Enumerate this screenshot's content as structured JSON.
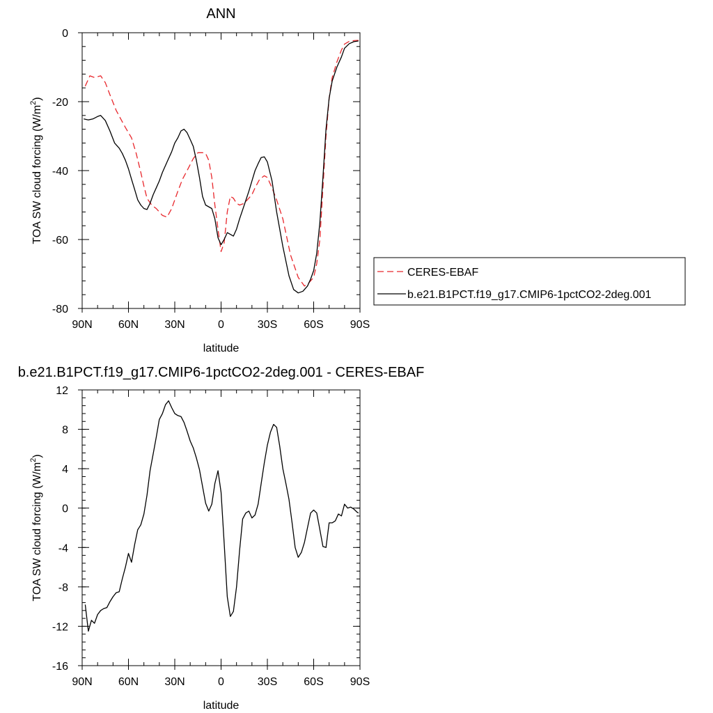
{
  "chart_data": [
    {
      "type": "line",
      "title": "ANN",
      "xlabel": "latitude",
      "ylabel_main": "TOA SW cloud forcing (W/m",
      "ylabel_sup": "2",
      "ylabel_end": ")",
      "xlim": [
        90,
        -90
      ],
      "ylim": [
        -80,
        0
      ],
      "xticks": [
        {
          "value": 90,
          "label": "90N"
        },
        {
          "value": 60,
          "label": "60N"
        },
        {
          "value": 30,
          "label": "30N"
        },
        {
          "value": 0,
          "label": "0"
        },
        {
          "value": -30,
          "label": "30S"
        },
        {
          "value": -60,
          "label": "60S"
        },
        {
          "value": -90,
          "label": "90S"
        }
      ],
      "yticks": [
        {
          "value": 0,
          "label": "0"
        },
        {
          "value": -20,
          "label": "-20"
        },
        {
          "value": -40,
          "label": "-40"
        },
        {
          "value": -60,
          "label": "-60"
        },
        {
          "value": -80,
          "label": "-80"
        }
      ],
      "legend_position": "right",
      "series": [
        {
          "name": "CERES-EBAF",
          "color": "#e8262b",
          "dash": "dashed",
          "x": [
            88,
            85,
            82,
            78,
            75,
            72,
            68,
            65,
            62,
            58,
            55,
            52,
            50,
            48,
            45,
            42,
            38,
            35,
            32,
            30,
            28,
            25,
            22,
            18,
            15,
            12,
            10,
            8,
            6,
            4,
            2,
            0,
            -2,
            -4,
            -6,
            -8,
            -10,
            -12,
            -15,
            -18,
            -20,
            -22,
            -25,
            -28,
            -30,
            -33,
            -36,
            -40,
            -45,
            -50,
            -54,
            -57,
            -60,
            -62,
            -64,
            -66,
            -68,
            -70,
            -72,
            -75,
            -78,
            -80,
            -83,
            -86,
            -89
          ],
          "y": [
            -15.5,
            -12.5,
            -13,
            -12.5,
            -14.5,
            -18,
            -22.5,
            -25,
            -27.5,
            -30.5,
            -35,
            -40.5,
            -44.5,
            -48,
            -50,
            -51,
            -53,
            -53.5,
            -51,
            -48.5,
            -46,
            -42.5,
            -40,
            -36.5,
            -34.8,
            -34.8,
            -35,
            -37,
            -42,
            -50,
            -57,
            -63.5,
            -61,
            -52,
            -47.5,
            -48,
            -49.5,
            -50,
            -49.5,
            -48,
            -47,
            -45,
            -42.5,
            -41.5,
            -42,
            -45,
            -48.5,
            -54,
            -64.5,
            -71,
            -73.5,
            -72.5,
            -71,
            -67,
            -60,
            -45,
            -30,
            -19,
            -13,
            -8.5,
            -5,
            -3.3,
            -2.5,
            -2.3,
            -2.2
          ]
        },
        {
          "name": "b.e21.B1PCT.f19_g17.CMIP6-1pctCO2-2deg.001",
          "color": "#000000",
          "dash": "solid",
          "x": [
            89,
            86,
            83,
            80,
            78,
            75,
            72,
            69,
            66,
            64,
            62,
            60,
            58,
            56,
            54,
            52,
            50,
            48,
            46,
            44,
            42,
            40,
            38,
            35,
            32,
            30,
            28,
            26,
            24,
            22,
            20,
            18,
            16,
            14,
            12,
            10,
            8,
            6,
            4,
            2,
            0,
            -2,
            -4,
            -6,
            -8,
            -10,
            -12,
            -15,
            -18,
            -20,
            -22,
            -24,
            -26,
            -28,
            -30,
            -33,
            -36,
            -40,
            -44,
            -47,
            -50,
            -53,
            -56,
            -58,
            -60,
            -62,
            -64,
            -66,
            -68,
            -70,
            -72,
            -75,
            -78,
            -80,
            -83,
            -86,
            -89
          ],
          "y": [
            -25,
            -25.3,
            -25,
            -24.3,
            -24,
            -25.5,
            -28.5,
            -32,
            -33.5,
            -35,
            -37,
            -39.5,
            -42.5,
            -45.5,
            -48.5,
            -50,
            -51,
            -51.3,
            -49.5,
            -47,
            -45,
            -43,
            -40.5,
            -37.5,
            -34.5,
            -32,
            -30.5,
            -28.5,
            -28,
            -29,
            -31,
            -33,
            -37,
            -42,
            -47.5,
            -50,
            -50.5,
            -51,
            -54,
            -59.5,
            -61.5,
            -60,
            -58,
            -58.5,
            -59,
            -57,
            -54,
            -50,
            -46,
            -43,
            -40,
            -38,
            -36.2,
            -36,
            -37.5,
            -43,
            -52,
            -62,
            -70.5,
            -74.5,
            -75.5,
            -75,
            -73.5,
            -71.5,
            -69,
            -64,
            -55,
            -42,
            -28,
            -19,
            -14,
            -10,
            -7,
            -4.5,
            -3.2,
            -2.6,
            -2.4
          ]
        }
      ]
    },
    {
      "type": "line",
      "title": "b.e21.B1PCT.f19_g17.CMIP6-1pctCO2-2deg.001 - CERES-EBAF",
      "xlabel": "latitude",
      "ylabel_main": "TOA SW cloud forcing (W/m",
      "ylabel_sup": "2",
      "ylabel_end": ")",
      "xlim": [
        90,
        -90
      ],
      "ylim": [
        -16,
        12
      ],
      "xticks": [
        {
          "value": 90,
          "label": "90N"
        },
        {
          "value": 60,
          "label": "60N"
        },
        {
          "value": 30,
          "label": "30N"
        },
        {
          "value": 0,
          "label": "0"
        },
        {
          "value": -30,
          "label": "30S"
        },
        {
          "value": -60,
          "label": "60S"
        },
        {
          "value": -90,
          "label": "90S"
        }
      ],
      "yticks": [
        {
          "value": 12,
          "label": "12"
        },
        {
          "value": 8,
          "label": "8"
        },
        {
          "value": 4,
          "label": "4"
        },
        {
          "value": 0,
          "label": "0"
        },
        {
          "value": -4,
          "label": "-4"
        },
        {
          "value": -8,
          "label": "-8"
        },
        {
          "value": -12,
          "label": "-12"
        },
        {
          "value": -16,
          "label": "-16"
        }
      ],
      "series": [
        {
          "color": "#000000",
          "dash": "solid",
          "x": [
            88,
            86,
            84,
            82,
            80,
            78,
            76,
            74,
            72,
            70,
            68,
            66,
            64,
            62,
            60,
            58,
            56,
            54,
            52,
            50,
            48,
            46,
            44,
            42,
            40,
            38,
            36,
            34,
            32,
            30,
            28,
            26,
            24,
            22,
            20,
            18,
            16,
            14,
            12,
            10,
            8,
            6,
            4,
            2,
            0,
            -2,
            -4,
            -6,
            -8,
            -10,
            -12,
            -14,
            -16,
            -18,
            -20,
            -22,
            -24,
            -26,
            -28,
            -30,
            -32,
            -34,
            -36,
            -38,
            -40,
            -42,
            -44,
            -46,
            -48,
            -50,
            -52,
            -54,
            -56,
            -58,
            -60,
            -62,
            -64,
            -66,
            -68,
            -70,
            -72,
            -74,
            -76,
            -78,
            -80,
            -82,
            -84,
            -86,
            -88,
            -89
          ],
          "y": [
            -9.8,
            -12.5,
            -11.4,
            -11.7,
            -10.8,
            -10.4,
            -10.2,
            -10.1,
            -9.5,
            -9,
            -8.6,
            -8.5,
            -7.2,
            -6,
            -4.6,
            -5.5,
            -3.7,
            -2.2,
            -1.7,
            -0.6,
            1.3,
            3.8,
            5.5,
            7.2,
            9,
            9.6,
            10.5,
            10.9,
            10.2,
            9.6,
            9.4,
            9.3,
            8.7,
            7.8,
            6.8,
            6.1,
            5.1,
            3.9,
            2.2,
            0.5,
            -0.3,
            0.4,
            2.5,
            3.8,
            1.6,
            -3.5,
            -9,
            -11,
            -10.5,
            -8,
            -4.3,
            -1.1,
            -0.5,
            -0.3,
            -1,
            -0.7,
            0.4,
            2.5,
            4.6,
            6.4,
            7.7,
            8.5,
            8.2,
            6.3,
            4,
            2.5,
            0.9,
            -1.5,
            -4,
            -5,
            -4.5,
            -3.5,
            -2,
            -0.5,
            -0.2,
            -0.5,
            -2.2,
            -3.9,
            -4,
            -1.5,
            -1.5,
            -1.3,
            -0.6,
            -0.8,
            0.4,
            0,
            0.1,
            -0.1,
            -0.4,
            -0.5
          ]
        }
      ]
    }
  ]
}
